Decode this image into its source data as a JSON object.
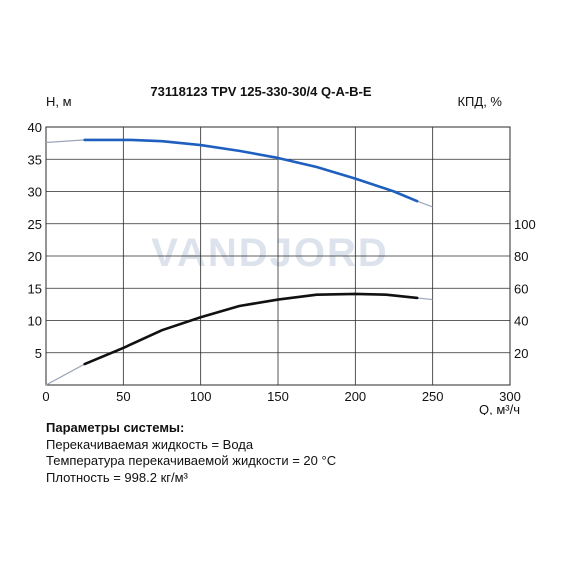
{
  "chart_data": {
    "type": "line",
    "title": "73118123 TPV 125-330-30/4 Q-A-B-E",
    "watermark": "VANDJORD",
    "xlabel": "Q, м³/ч",
    "ylabel_left": "H, м",
    "ylabel_right": "КПД, %",
    "xlim": [
      0,
      300
    ],
    "ylim_left": [
      0,
      40
    ],
    "ylim_right": [
      0,
      160
    ],
    "x_ticks": [
      0,
      50,
      100,
      150,
      200,
      250,
      300
    ],
    "y_left_ticks": [
      5,
      10,
      15,
      20,
      25,
      30,
      35,
      40
    ],
    "y_right_ticks": [
      20,
      40,
      60,
      80,
      100
    ],
    "grid": true,
    "colors": {
      "head": "#1f5fbf",
      "efficiency": "#111111",
      "extension": "#9aa6b8",
      "grid": "#2a2a2a",
      "watermark": "#dde3ec"
    },
    "series": [
      {
        "axis": "left",
        "color": "#1f5fbf",
        "x": [
          25,
          55,
          75,
          100,
          125,
          150,
          175,
          200,
          225,
          240
        ],
        "y": [
          38.0,
          38.0,
          37.8,
          37.2,
          36.3,
          35.2,
          33.8,
          32.0,
          30.0,
          28.5
        ]
      },
      {
        "axis": "right",
        "color": "#111111",
        "x": [
          25,
          50,
          75,
          100,
          125,
          150,
          175,
          200,
          220,
          240
        ],
        "y": [
          13,
          23,
          34,
          42,
          49,
          53,
          56,
          56.5,
          56,
          54
        ]
      }
    ],
    "extensions": [
      {
        "axis": "left",
        "x": [
          0,
          25
        ],
        "y": [
          37.6,
          38.0
        ]
      },
      {
        "axis": "left",
        "x": [
          240,
          250
        ],
        "y": [
          28.5,
          27.6
        ]
      },
      {
        "axis": "right",
        "x": [
          0,
          25
        ],
        "y": [
          0,
          13
        ]
      },
      {
        "axis": "right",
        "x": [
          240,
          250
        ],
        "y": [
          54,
          53
        ]
      }
    ]
  },
  "info": {
    "heading": "Параметры системы:",
    "lines": [
      "Перекачиваемая жидкость = Вода",
      "Температура перекачиваемой жидкости = 20 °C",
      "Плотность = 998.2 кг/м³"
    ]
  }
}
